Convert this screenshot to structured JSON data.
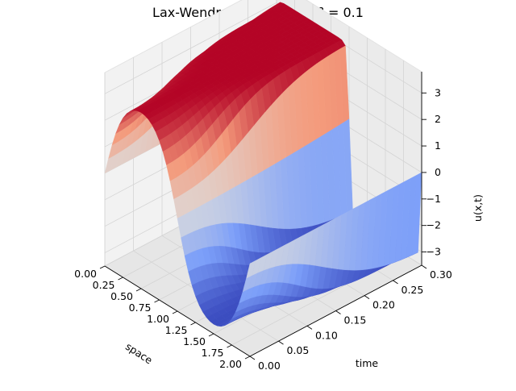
{
  "chart_data": {
    "type": "surface",
    "title": "Lax-Wendroff Method for β = 0.1",
    "title_prefix": "Lax-Wendroff Method for ",
    "title_beta": "β",
    "title_value": " = 0.1",
    "xlabel": "space",
    "ylabel": "time",
    "zlabel": "u(x,t)",
    "x_ticks": [
      "0.00",
      "0.25",
      "0.50",
      "0.75",
      "1.00",
      "1.25",
      "1.50",
      "1.75",
      "2.00"
    ],
    "y_ticks": [
      "0.00",
      "0.05",
      "0.10",
      "0.15",
      "0.20",
      "0.25",
      "0.30"
    ],
    "z_ticks": [
      "−3",
      "−2",
      "−1",
      "0",
      "1",
      "2",
      "3"
    ],
    "xlim": [
      0,
      2
    ],
    "ylim": [
      0,
      0.3
    ],
    "zlim": [
      -3.5,
      3.8
    ],
    "colormap": "coolwarm",
    "grid": true,
    "surface_description": "u(x,t) ≈ π·sin(πx) at t=0, steepening into a discontinuity at x≈1 as t increases; oscillations near the shock at late times"
  }
}
